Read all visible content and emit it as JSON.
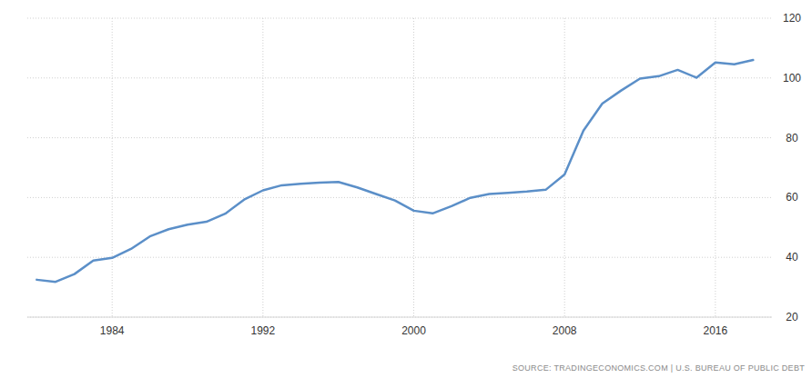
{
  "chart_data": {
    "type": "line",
    "source": "SOURCE: TRADINGECONOMICS.COM | U.S. BUREAU OF PUBLIC DEBT",
    "x": [
      1980,
      1981,
      1982,
      1983,
      1984,
      1985,
      1986,
      1987,
      1988,
      1989,
      1990,
      1991,
      1992,
      1993,
      1994,
      1995,
      1996,
      1997,
      1998,
      1999,
      2000,
      2001,
      2002,
      2003,
      2004,
      2005,
      2006,
      2007,
      2008,
      2009,
      2010,
      2011,
      2012,
      2013,
      2014,
      2015,
      2016,
      2017,
      2018
    ],
    "values": [
      32.5,
      31.8,
      34.4,
      38.9,
      39.8,
      42.8,
      47,
      49.4,
      50.9,
      51.9,
      54.6,
      59.3,
      62.4,
      64.1,
      64.6,
      65,
      65.2,
      63.4,
      61.2,
      59,
      55.6,
      54.7,
      57.1,
      59.9,
      61.2,
      61.6,
      62,
      62.6,
      67.7,
      82.4,
      91.4,
      95.8,
      99.8,
      100.6,
      102.7,
      100.1,
      105.2,
      104.6,
      106
    ],
    "color": "#5b8fc8",
    "xlim": [
      1979.5,
      2019
    ],
    "xticks": [
      1984,
      1992,
      2000,
      2008,
      2016
    ],
    "ylim": [
      20,
      120
    ],
    "yticks": [
      20,
      40,
      60,
      80,
      100,
      120
    ],
    "grid": true
  }
}
